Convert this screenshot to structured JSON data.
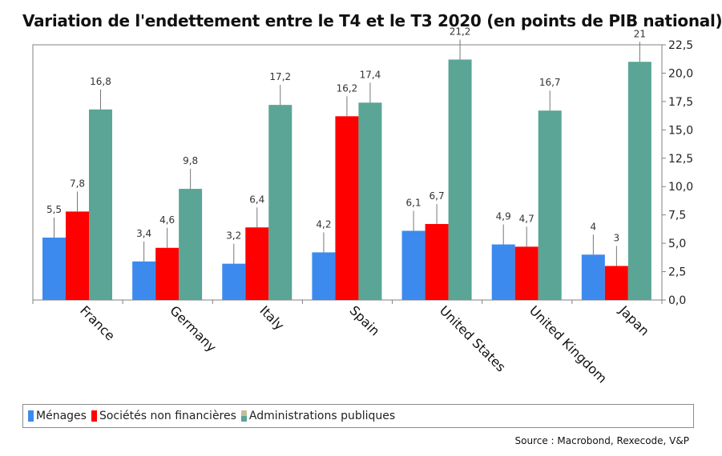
{
  "title": "Variation de l'endettement entre le T4 et le T3 2020 (en points de PIB national)",
  "source": "Source : Macrobond, Rexecode, V&P",
  "colors": {
    "menages": "#3c8aee",
    "societes": "#ff0000",
    "admin": "#5aa595",
    "admin_legend_top": "#c8bc9e"
  },
  "legend": [
    {
      "label": "Ménages",
      "color": "#3c8aee",
      "color_top": "#3c8aee"
    },
    {
      "label": "Sociétés non financières",
      "color": "#ff0000",
      "color_top": "#ff0000"
    },
    {
      "label": "Administrations publiques",
      "color": "#5aa595",
      "color_top": "#c8bc9e"
    }
  ],
  "chart_data": {
    "type": "bar",
    "title": "Variation de l'endettement entre le T4 et le T3 2020 (en points de PIB national)",
    "categories": [
      "France",
      "Germany",
      "Italy",
      "Spain",
      "United States",
      "United Kingdom",
      "Japan"
    ],
    "series": [
      {
        "name": "Ménages",
        "values": [
          5.5,
          3.4,
          3.2,
          4.2,
          6.1,
          4.9,
          4.0
        ],
        "labels": [
          "5,5",
          "3,4",
          "3,2",
          "4,2",
          "6,1",
          "4,9",
          "4"
        ]
      },
      {
        "name": "Sociétés non financières",
        "values": [
          7.8,
          4.6,
          6.4,
          16.2,
          6.7,
          4.7,
          3.0
        ],
        "labels": [
          "7,8",
          "4,6",
          "6,4",
          "16,2",
          "6,7",
          "4,7",
          "3"
        ]
      },
      {
        "name": "Administrations publiques",
        "values": [
          16.8,
          9.8,
          17.2,
          17.4,
          21.2,
          16.7,
          21.0
        ],
        "labels": [
          "16,8",
          "9,8",
          "17,2",
          "17,4",
          "21,2",
          "16,7",
          "21"
        ]
      }
    ],
    "ylim": [
      0,
      22.5
    ],
    "y_ticks": [
      0,
      2.5,
      5,
      7.5,
      10,
      12.5,
      15,
      17.5,
      20,
      22.5
    ],
    "y_tick_labels": [
      "0,0",
      "2,5",
      "5,0",
      "7,5",
      "10,0",
      "12,5",
      "15,0",
      "17,5",
      "20,0",
      "22,5"
    ],
    "y_axis_side": "right",
    "grid": false,
    "legend_position": "bottom"
  }
}
